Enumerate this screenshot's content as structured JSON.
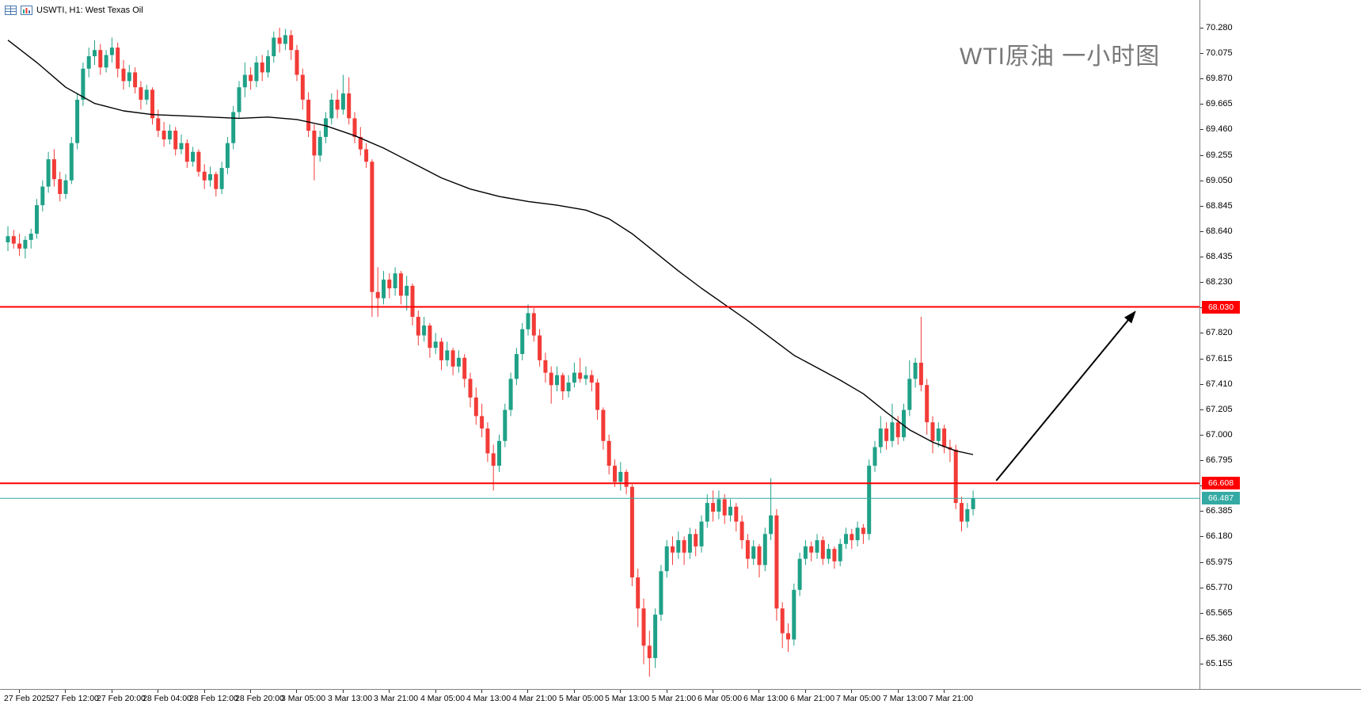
{
  "header": {
    "symbol_label": "USWTI, H1:  West Texas Oil"
  },
  "title": {
    "text": "WTI原油 一小时图"
  },
  "chart_data": {
    "type": "candlestick",
    "symbol": "USWTI",
    "timeframe": "H1",
    "instrument": "West Texas Oil",
    "annotation_title": "WTI原油 一小时图",
    "grid": false,
    "legend_position": "none",
    "up_color": "#1fa187",
    "down_color": "#f23b37",
    "ma_color": "#000000",
    "ylim": [
      65.155,
      70.28
    ],
    "y_ticks": [
      "70.280",
      "70.075",
      "69.870",
      "69.665",
      "69.460",
      "69.255",
      "69.050",
      "68.845",
      "68.640",
      "68.435",
      "68.230",
      "68.025",
      "67.820",
      "67.615",
      "67.410",
      "67.205",
      "67.000",
      "66.795",
      "66.590",
      "66.385",
      "66.180",
      "65.975",
      "65.770",
      "65.565",
      "65.360",
      "65.155"
    ],
    "x_labels": [
      "27 Feb 2025",
      "27 Feb 12:00",
      "27 Feb 20:00",
      "28 Feb 04:00",
      "28 Feb 12:00",
      "28 Feb 20:00",
      "3 Mar 05:00",
      "3 Mar 13:00",
      "3 Mar 21:00",
      "4 Mar 05:00",
      "4 Mar 13:00",
      "4 Mar 21:00",
      "5 Mar 05:00",
      "5 Mar 13:00",
      "5 Mar 21:00",
      "6 Mar 05:00",
      "6 Mar 13:00",
      "6 Mar 21:00",
      "7 Mar 05:00",
      "7 Mar 13:00",
      "7 Mar 21:00"
    ],
    "x_label_step_bars": 8,
    "candles": [
      [
        68.55,
        68.68,
        68.48,
        68.6
      ],
      [
        68.6,
        68.65,
        68.5,
        68.54
      ],
      [
        68.54,
        68.62,
        68.44,
        68.5
      ],
      [
        68.5,
        68.6,
        68.42,
        68.57
      ],
      [
        68.57,
        68.66,
        68.5,
        68.62
      ],
      [
        68.62,
        68.9,
        68.58,
        68.85
      ],
      [
        68.85,
        69.05,
        68.8,
        69.0
      ],
      [
        69.0,
        69.28,
        68.95,
        69.22
      ],
      [
        69.22,
        69.3,
        69.0,
        69.06
      ],
      [
        69.06,
        69.12,
        68.88,
        68.94
      ],
      [
        68.94,
        69.1,
        68.9,
        69.05
      ],
      [
        69.05,
        69.4,
        69.02,
        69.35
      ],
      [
        69.35,
        69.75,
        69.3,
        69.7
      ],
      [
        69.7,
        70.0,
        69.65,
        69.95
      ],
      [
        69.95,
        70.12,
        69.88,
        70.05
      ],
      [
        70.05,
        70.18,
        69.98,
        70.1
      ],
      [
        70.1,
        70.15,
        69.9,
        69.96
      ],
      [
        69.96,
        70.1,
        69.92,
        70.06
      ],
      [
        70.06,
        70.2,
        70.0,
        70.12
      ],
      [
        70.12,
        70.16,
        69.88,
        69.95
      ],
      [
        69.95,
        70.02,
        69.78,
        69.85
      ],
      [
        69.85,
        69.98,
        69.8,
        69.92
      ],
      [
        69.92,
        69.96,
        69.75,
        69.8
      ],
      [
        69.8,
        69.85,
        69.62,
        69.7
      ],
      [
        69.7,
        69.82,
        69.66,
        69.78
      ],
      [
        69.78,
        69.8,
        69.5,
        69.55
      ],
      [
        69.55,
        69.62,
        69.4,
        69.45
      ],
      [
        69.45,
        69.52,
        69.32,
        69.38
      ],
      [
        69.38,
        69.5,
        69.34,
        69.45
      ],
      [
        69.45,
        69.48,
        69.25,
        69.3
      ],
      [
        69.3,
        69.42,
        69.26,
        69.35
      ],
      [
        69.35,
        69.38,
        69.15,
        69.2
      ],
      [
        69.2,
        69.32,
        69.16,
        69.28
      ],
      [
        69.28,
        69.3,
        69.08,
        69.12
      ],
      [
        69.12,
        69.18,
        68.98,
        69.05
      ],
      [
        69.05,
        69.16,
        69.0,
        69.1
      ],
      [
        69.1,
        69.12,
        68.92,
        68.98
      ],
      [
        68.98,
        69.2,
        68.94,
        69.15
      ],
      [
        69.15,
        69.4,
        69.1,
        69.35
      ],
      [
        69.35,
        69.65,
        69.3,
        69.6
      ],
      [
        69.6,
        69.85,
        69.55,
        69.8
      ],
      [
        69.8,
        70.0,
        69.72,
        69.9
      ],
      [
        69.9,
        69.96,
        69.78,
        69.85
      ],
      [
        69.85,
        70.05,
        69.8,
        70.0
      ],
      [
        70.0,
        70.06,
        69.85,
        69.92
      ],
      [
        69.92,
        70.1,
        69.88,
        70.05
      ],
      [
        70.05,
        70.25,
        70.0,
        70.2
      ],
      [
        70.2,
        70.28,
        70.08,
        70.15
      ],
      [
        70.15,
        70.27,
        70.1,
        70.22
      ],
      [
        70.22,
        70.26,
        70.02,
        70.1
      ],
      [
        70.1,
        70.14,
        69.85,
        69.9
      ],
      [
        69.9,
        69.95,
        69.62,
        69.7
      ],
      [
        69.7,
        69.76,
        69.4,
        69.45
      ],
      [
        69.45,
        69.5,
        69.05,
        69.25
      ],
      [
        69.25,
        69.45,
        69.2,
        69.4
      ],
      [
        69.4,
        69.6,
        69.35,
        69.55
      ],
      [
        69.55,
        69.75,
        69.5,
        69.7
      ],
      [
        69.7,
        69.78,
        69.55,
        69.62
      ],
      [
        69.62,
        69.9,
        69.58,
        69.75
      ],
      [
        69.75,
        69.88,
        69.5,
        69.55
      ],
      [
        69.55,
        69.6,
        69.35,
        69.4
      ],
      [
        69.4,
        69.48,
        69.25,
        69.3
      ],
      [
        69.3,
        69.35,
        69.15,
        69.2
      ],
      [
        69.2,
        69.22,
        67.95,
        68.15
      ],
      [
        68.15,
        68.35,
        67.95,
        68.1
      ],
      [
        68.1,
        68.32,
        68.05,
        68.25
      ],
      [
        68.25,
        68.3,
        68.1,
        68.18
      ],
      [
        68.18,
        68.35,
        68.12,
        68.3
      ],
      [
        68.3,
        68.32,
        68.05,
        68.12
      ],
      [
        68.12,
        68.28,
        68.0,
        68.2
      ],
      [
        68.2,
        68.22,
        67.88,
        67.95
      ],
      [
        67.95,
        68.0,
        67.72,
        67.8
      ],
      [
        67.8,
        67.95,
        67.75,
        67.88
      ],
      [
        67.88,
        67.9,
        67.62,
        67.7
      ],
      [
        67.7,
        67.82,
        67.65,
        67.75
      ],
      [
        67.75,
        67.78,
        67.52,
        67.6
      ],
      [
        67.6,
        67.75,
        67.55,
        67.68
      ],
      [
        67.68,
        67.7,
        67.48,
        67.55
      ],
      [
        67.55,
        67.68,
        67.5,
        67.62
      ],
      [
        67.62,
        67.65,
        67.38,
        67.45
      ],
      [
        67.45,
        67.5,
        67.22,
        67.3
      ],
      [
        67.3,
        67.38,
        67.08,
        67.15
      ],
      [
        67.15,
        67.25,
        66.98,
        67.05
      ],
      [
        67.05,
        67.1,
        66.78,
        66.85
      ],
      [
        66.85,
        66.92,
        66.55,
        66.75
      ],
      [
        66.75,
        67.0,
        66.7,
        66.95
      ],
      [
        66.95,
        67.25,
        66.9,
        67.2
      ],
      [
        67.2,
        67.5,
        67.15,
        67.45
      ],
      [
        67.45,
        67.7,
        67.4,
        67.65
      ],
      [
        67.65,
        67.9,
        67.6,
        67.85
      ],
      [
        67.85,
        68.05,
        67.8,
        67.98
      ],
      [
        67.98,
        68.02,
        67.75,
        67.8
      ],
      [
        67.8,
        67.85,
        67.55,
        67.6
      ],
      [
        67.6,
        67.66,
        67.42,
        67.5
      ],
      [
        67.5,
        67.55,
        67.25,
        67.4
      ],
      [
        67.4,
        67.55,
        67.35,
        67.48
      ],
      [
        67.48,
        67.5,
        67.28,
        67.35
      ],
      [
        67.35,
        67.48,
        67.3,
        67.42
      ],
      [
        67.42,
        67.58,
        67.38,
        67.5
      ],
      [
        67.5,
        67.62,
        67.42,
        67.45
      ],
      [
        67.45,
        67.55,
        67.4,
        67.48
      ],
      [
        67.48,
        67.52,
        67.35,
        67.42
      ],
      [
        67.42,
        67.45,
        67.12,
        67.2
      ],
      [
        67.2,
        67.22,
        66.88,
        66.95
      ],
      [
        66.95,
        67.0,
        66.68,
        66.75
      ],
      [
        66.75,
        66.8,
        66.58,
        66.62
      ],
      [
        66.62,
        66.78,
        66.55,
        66.7
      ],
      [
        66.7,
        66.72,
        66.52,
        66.58
      ],
      [
        66.58,
        66.6,
        65.78,
        65.85
      ],
      [
        65.85,
        65.92,
        65.45,
        65.6
      ],
      [
        65.6,
        65.68,
        65.15,
        65.3
      ],
      [
        65.3,
        65.42,
        65.05,
        65.2
      ],
      [
        65.2,
        65.6,
        65.12,
        65.55
      ],
      [
        65.55,
        65.95,
        65.5,
        65.9
      ],
      [
        65.9,
        66.15,
        65.85,
        66.1
      ],
      [
        66.1,
        66.18,
        65.95,
        66.05
      ],
      [
        66.05,
        66.22,
        66.0,
        66.15
      ],
      [
        66.15,
        66.18,
        65.95,
        66.05
      ],
      [
        66.05,
        66.25,
        66.0,
        66.2
      ],
      [
        66.2,
        66.24,
        66.02,
        66.1
      ],
      [
        66.1,
        66.35,
        66.05,
        66.3
      ],
      [
        66.3,
        66.52,
        66.25,
        66.45
      ],
      [
        66.45,
        66.55,
        66.3,
        66.38
      ],
      [
        66.38,
        66.55,
        66.32,
        66.48
      ],
      [
        66.48,
        66.52,
        66.28,
        66.35
      ],
      [
        66.35,
        66.48,
        66.3,
        66.42
      ],
      [
        66.42,
        66.45,
        66.22,
        66.3
      ],
      [
        66.3,
        66.35,
        66.08,
        66.15
      ],
      [
        66.15,
        66.2,
        65.92,
        66.0
      ],
      [
        66.0,
        66.15,
        65.95,
        66.1
      ],
      [
        66.1,
        66.12,
        65.85,
        65.95
      ],
      [
        65.95,
        66.25,
        65.9,
        66.2
      ],
      [
        66.2,
        66.65,
        66.15,
        66.35
      ],
      [
        66.35,
        66.4,
        65.5,
        65.6
      ],
      [
        65.6,
        65.65,
        65.28,
        65.4
      ],
      [
        65.4,
        65.48,
        65.25,
        65.35
      ],
      [
        65.35,
        65.8,
        65.3,
        65.75
      ],
      [
        65.75,
        66.05,
        65.7,
        66.0
      ],
      [
        66.0,
        66.15,
        65.95,
        66.1
      ],
      [
        66.1,
        66.14,
        65.98,
        66.05
      ],
      [
        66.05,
        66.2,
        66.0,
        66.15
      ],
      [
        66.15,
        66.18,
        65.95,
        66.0
      ],
      [
        66.0,
        66.12,
        65.96,
        66.08
      ],
      [
        66.08,
        66.1,
        65.92,
        65.98
      ],
      [
        65.98,
        66.16,
        65.94,
        66.12
      ],
      [
        66.12,
        66.25,
        66.08,
        66.2
      ],
      [
        66.2,
        66.24,
        66.08,
        66.15
      ],
      [
        66.15,
        66.3,
        66.1,
        66.25
      ],
      [
        66.25,
        66.28,
        66.12,
        66.2
      ],
      [
        66.2,
        66.8,
        66.15,
        66.75
      ],
      [
        66.75,
        66.95,
        66.7,
        66.9
      ],
      [
        66.9,
        67.15,
        66.85,
        67.05
      ],
      [
        67.05,
        67.1,
        66.88,
        66.95
      ],
      [
        66.95,
        67.25,
        66.9,
        67.1
      ],
      [
        67.1,
        67.15,
        66.92,
        66.98
      ],
      [
        66.98,
        67.25,
        66.95,
        67.2
      ],
      [
        67.2,
        67.6,
        67.15,
        67.45
      ],
      [
        67.45,
        67.62,
        67.38,
        67.58
      ],
      [
        67.58,
        67.95,
        67.35,
        67.4
      ],
      [
        67.4,
        67.45,
        67.0,
        67.1
      ],
      [
        67.1,
        67.15,
        66.85,
        66.95
      ],
      [
        66.95,
        67.1,
        66.9,
        67.05
      ],
      [
        67.05,
        67.08,
        66.85,
        66.9
      ],
      [
        66.9,
        66.96,
        66.78,
        66.88
      ],
      [
        66.88,
        66.92,
        66.4,
        66.45
      ],
      [
        66.45,
        66.5,
        66.22,
        66.3
      ],
      [
        66.3,
        66.45,
        66.25,
        66.4
      ],
      [
        66.4,
        66.55,
        66.35,
        66.487
      ]
    ],
    "ma_line": [
      [
        0,
        70.18
      ],
      [
        5,
        70.0
      ],
      [
        10,
        69.8
      ],
      [
        15,
        69.67
      ],
      [
        20,
        69.61
      ],
      [
        25,
        69.58
      ],
      [
        30,
        69.57
      ],
      [
        35,
        69.56
      ],
      [
        40,
        69.55
      ],
      [
        45,
        69.56
      ],
      [
        50,
        69.54
      ],
      [
        55,
        69.49
      ],
      [
        60,
        69.41
      ],
      [
        65,
        69.31
      ],
      [
        70,
        69.19
      ],
      [
        75,
        69.07
      ],
      [
        80,
        68.98
      ],
      [
        85,
        68.92
      ],
      [
        90,
        68.88
      ],
      [
        95,
        68.85
      ],
      [
        100,
        68.81
      ],
      [
        104,
        68.74
      ],
      [
        108,
        68.62
      ],
      [
        112,
        68.47
      ],
      [
        116,
        68.32
      ],
      [
        120,
        68.18
      ],
      [
        124,
        68.05
      ],
      [
        128,
        67.92
      ],
      [
        132,
        67.78
      ],
      [
        136,
        67.64
      ],
      [
        140,
        67.54
      ],
      [
        144,
        67.44
      ],
      [
        148,
        67.33
      ],
      [
        152,
        67.18
      ],
      [
        156,
        67.04
      ],
      [
        160,
        66.94
      ],
      [
        164,
        66.87
      ],
      [
        167,
        66.84
      ]
    ],
    "h_lines": [
      {
        "price": 68.03,
        "label": "68.030",
        "color": "#ff0000",
        "role": "resistance-line"
      },
      {
        "price": 66.608,
        "label": "66.608",
        "color": "#ff0000",
        "role": "support-line"
      },
      {
        "price": 66.487,
        "label": "66.487",
        "color": "#35aaa4",
        "role": "bid-price-line"
      }
    ],
    "arrow": {
      "from_bar": 171,
      "from_price": 66.63,
      "to_bar": 195,
      "to_price": 67.99,
      "color": "#000000"
    },
    "current_price": "66.487"
  }
}
